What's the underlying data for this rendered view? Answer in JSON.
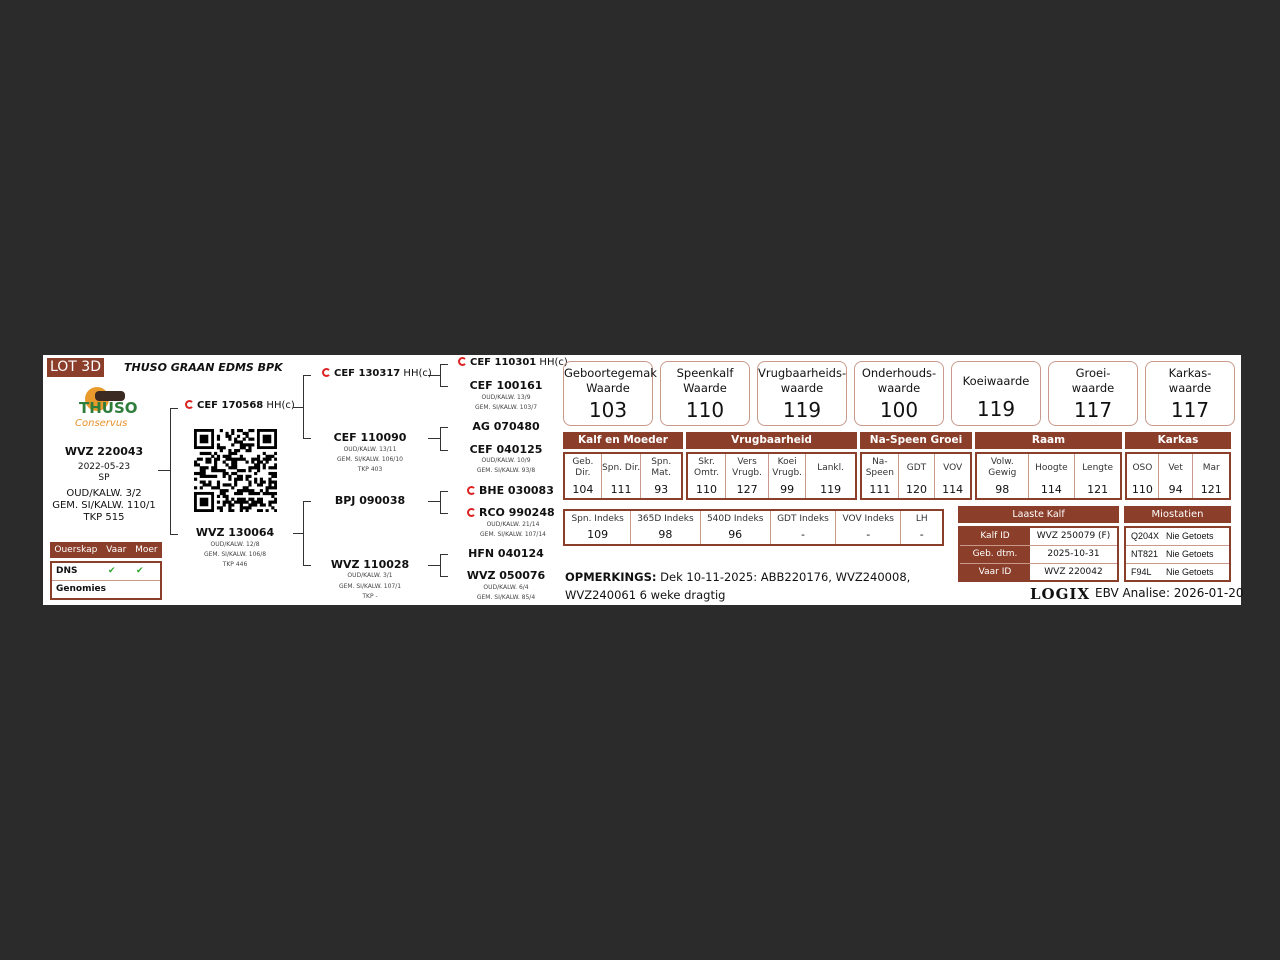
{
  "header": {
    "lot": "LOT 3D",
    "owner": "THUSO GRAAN EDMS BPK"
  },
  "logo": {
    "text": "THUSO",
    "subtext": "Conservus"
  },
  "animal": {
    "id": "WVZ 220043",
    "birth": "2022-05-23",
    "type": "SP",
    "oud": "OUD/KALW. 3/2",
    "gem": "GEM. SI/KALW. 110/1",
    "tkp": "TKP 515"
  },
  "parentage": {
    "headers": [
      "Ouerskap",
      "Vaar",
      "Moer"
    ],
    "rows": [
      {
        "label": "DNS",
        "vaar": "✔",
        "moer": "✔"
      },
      {
        "label": "Genomies",
        "vaar": "",
        "moer": ""
      }
    ]
  },
  "pedigree": {
    "sire": {
      "id": "CEF 170568",
      "suffix": "HH(c)"
    },
    "dam": {
      "id": "WVZ 130064",
      "oud": "OUD/KALW. 12/8",
      "gem": "GEM. SI/KALW. 106/8",
      "tkp": "TKP 446"
    },
    "ss": {
      "id": "CEF 130317",
      "suffix": "HH(c)"
    },
    "sd": {
      "id": "CEF 110090",
      "oud": "OUD/KALW. 13/11",
      "gem": "GEM. SI/KALW. 106/10",
      "tkp": "TKP 403"
    },
    "ds": {
      "id": "BPJ 090038"
    },
    "dd": {
      "id": "WVZ 110028",
      "oud": "OUD/KALW. 3/1",
      "gem": "GEM. SI/KALW. 107/1",
      "tkp": "TKP -"
    },
    "sss": {
      "id": "CEF 110301",
      "suffix": "HH(c)"
    },
    "ssd": {
      "id": "CEF 100161",
      "oud": "OUD/KALW. 13/9",
      "gem": "GEM. SI/KALW. 103/7"
    },
    "sds": {
      "id": "AG 070480"
    },
    "sdd": {
      "id": "CEF 040125",
      "oud": "OUD/KALW. 10/9",
      "gem": "GEM. SI/KALW. 93/8"
    },
    "dss": {
      "id": "BHE 030083"
    },
    "dsd": {
      "id": "RCO 990248",
      "oud": "OUD/KALW. 21/14",
      "gem": "GEM. SI/KALW. 107/14"
    },
    "dds": {
      "id": "HFN 040124"
    },
    "ddd": {
      "id": "WVZ 050076",
      "oud": "OUD/KALW. 6/4",
      "gem": "GEM. SI/KALW. 85/4"
    }
  },
  "cards": [
    {
      "l1": "Geboortegemak",
      "l2": "Waarde",
      "v": "103"
    },
    {
      "l1": "Speenkalf",
      "l2": "Waarde",
      "v": "110"
    },
    {
      "l1": "Vrugbaarheids-",
      "l2": "waarde",
      "v": "119"
    },
    {
      "l1": "Onderhouds-",
      "l2": "waarde",
      "v": "100"
    },
    {
      "l1": "Koeiwaarde",
      "l2": "",
      "v": "119"
    },
    {
      "l1": "Groei-",
      "l2": "waarde",
      "v": "117"
    },
    {
      "l1": "Karkas-",
      "l2": "waarde",
      "v": "117"
    }
  ],
  "groups": [
    {
      "name": "Kalf en Moeder",
      "cols": [
        {
          "h": "Geb. Dir.",
          "v": "104"
        },
        {
          "h": "Spn. Dir.",
          "v": "111"
        },
        {
          "h": "Spn. Mat.",
          "v": "93"
        }
      ]
    },
    {
      "name": "Vrugbaarheid",
      "cols": [
        {
          "h": "Skr. Omtr.",
          "v": "110"
        },
        {
          "h": "Vers Vrugb.",
          "v": "127"
        },
        {
          "h": "Koei Vrugb.",
          "v": "99"
        },
        {
          "h": "Lankl.",
          "v": "119"
        }
      ]
    },
    {
      "name": "Na-Speen Groei",
      "cols": [
        {
          "h": "Na- Speen",
          "v": "111"
        },
        {
          "h": "GDT",
          "v": "120"
        },
        {
          "h": "VOV",
          "v": "114"
        }
      ]
    },
    {
      "name": "Raam",
      "cols": [
        {
          "h": "Volw. Gewig",
          "v": "98"
        },
        {
          "h": "Hoogte",
          "v": "114"
        },
        {
          "h": "Lengte",
          "v": "121"
        }
      ]
    },
    {
      "name": "Karkas",
      "cols": [
        {
          "h": "OSO",
          "v": "110"
        },
        {
          "h": "Vet",
          "v": "94"
        },
        {
          "h": "Mar",
          "v": "121"
        }
      ]
    }
  ],
  "indexes": [
    {
      "h": "Spn. Indeks",
      "v": "109"
    },
    {
      "h": "365D Indeks",
      "v": "98"
    },
    {
      "h": "540D Indeks",
      "v": "96"
    },
    {
      "h": "GDT Indeks",
      "v": "-"
    },
    {
      "h": "VOV Indeks",
      "v": "-"
    },
    {
      "h": "LH",
      "v": "-"
    }
  ],
  "last_calf": {
    "title": "Laaste Kalf",
    "rows": [
      {
        "k": "Kalf ID",
        "v": "WVZ 250079 (F)"
      },
      {
        "k": "Geb. dtm.",
        "v": "2025-10-31"
      },
      {
        "k": "Vaar ID",
        "v": "WVZ 220042"
      }
    ]
  },
  "myostatin": {
    "title": "Miostatien",
    "rows": [
      {
        "k": "Q204X",
        "v": "Nie Getoets"
      },
      {
        "k": "NT821",
        "v": "Nie Getoets"
      },
      {
        "k": "F94L",
        "v": "Nie Getoets"
      }
    ]
  },
  "remarks": {
    "label": "OPMERKINGS:",
    "line1": "Dek 10-11-2025:  ABB220176, WVZ240008,",
    "line2": "WVZ240061 6 weke dragtig"
  },
  "footer": {
    "brand": "LOGIX",
    "ebv": "EBV Analise: 2026-01-20"
  },
  "colors": {
    "brand": "#8b3f2b",
    "background": "#2b2b2b",
    "check": "#2aa52a"
  }
}
